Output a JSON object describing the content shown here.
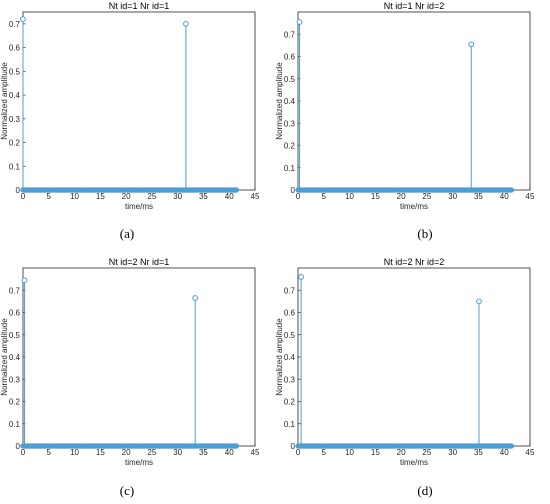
{
  "colors": {
    "stem": "#4a9fd4",
    "axis": "#262626",
    "text": "#262626"
  },
  "captions": [
    "(a)",
    "(b)",
    "(c)",
    "(d)"
  ],
  "chart_data": [
    {
      "type": "stem",
      "title": "Nt id=1 Nr id=1",
      "xlabel": "time/ms",
      "ylabel": "Normalized amplitude",
      "xlim": [
        0,
        45
      ],
      "ylim": [
        0,
        0.75
      ],
      "xticks": [
        "0",
        "5",
        "10",
        "15",
        "20",
        "25",
        "30",
        "35",
        "40",
        "45"
      ],
      "yticks": [
        "0",
        "0.1",
        "0.2",
        "0.3",
        "0.4",
        "0.5",
        "0.6",
        "0.7"
      ],
      "grid": false,
      "peaks": [
        {
          "x": 0.0,
          "y": 0.72
        },
        {
          "x": 31.6,
          "y": 0.7
        }
      ],
      "baseline": {
        "from": 0,
        "to": 41.5,
        "value": 0
      }
    },
    {
      "type": "stem",
      "title": "Nt id=1 Nr id=2",
      "xlabel": "time/ms",
      "ylabel": "Normalized amplitude",
      "xlim": [
        0,
        45
      ],
      "ylim": [
        0,
        0.8
      ],
      "xticks": [
        "0",
        "5",
        "10",
        "15",
        "20",
        "25",
        "30",
        "35",
        "40",
        "45"
      ],
      "yticks": [
        "0",
        "0.1",
        "0.2",
        "0.3",
        "0.4",
        "0.5",
        "0.6",
        "0.7"
      ],
      "grid": false,
      "peaks": [
        {
          "x": 0.3,
          "y": 0.755
        },
        {
          "x": 33.6,
          "y": 0.655
        }
      ],
      "baseline": {
        "from": 0,
        "to": 41.5,
        "value": 0
      }
    },
    {
      "type": "stem",
      "title": "Nt id=2 Nr id=1",
      "xlabel": "time/ms",
      "ylabel": "Normalized amplitude",
      "xlim": [
        0,
        45
      ],
      "ylim": [
        0,
        0.8
      ],
      "xticks": [
        "0",
        "5",
        "10",
        "15",
        "20",
        "25",
        "30",
        "35",
        "40",
        "45"
      ],
      "yticks": [
        "0",
        "0.1",
        "0.2",
        "0.3",
        "0.4",
        "0.5",
        "0.6",
        "0.7"
      ],
      "grid": false,
      "peaks": [
        {
          "x": 0.3,
          "y": 0.745
        },
        {
          "x": 33.4,
          "y": 0.665
        }
      ],
      "baseline": {
        "from": 0,
        "to": 41.5,
        "value": 0
      }
    },
    {
      "type": "stem",
      "title": "Nt id=2 Nr id=2",
      "xlabel": "time/ms",
      "ylabel": "Normalized amplitude",
      "xlim": [
        0,
        45
      ],
      "ylim": [
        0,
        0.8
      ],
      "xticks": [
        "0",
        "5",
        "10",
        "15",
        "20",
        "25",
        "30",
        "35",
        "40",
        "45"
      ],
      "yticks": [
        "0",
        "0.1",
        "0.2",
        "0.3",
        "0.4",
        "0.5",
        "0.6",
        "0.7"
      ],
      "grid": false,
      "peaks": [
        {
          "x": 0.6,
          "y": 0.76
        },
        {
          "x": 35.1,
          "y": 0.65
        }
      ],
      "baseline": {
        "from": 0,
        "to": 41.5,
        "value": 0
      }
    }
  ]
}
